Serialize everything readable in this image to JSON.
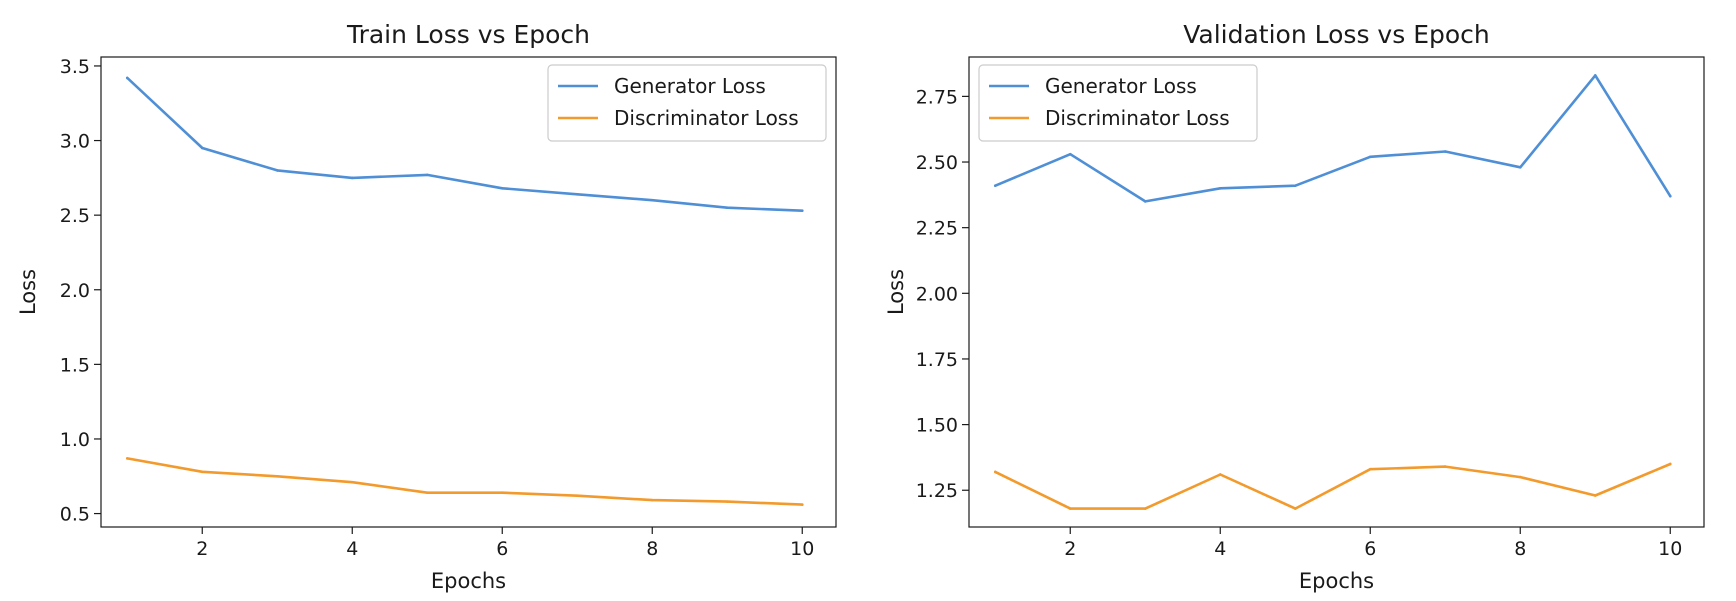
{
  "chart_data": [
    {
      "type": "line",
      "title": "Train Loss vs Epoch",
      "xlabel": "Epochs",
      "ylabel": "Loss",
      "x": [
        1,
        2,
        3,
        4,
        5,
        6,
        7,
        8,
        9,
        10
      ],
      "xlim": [
        0.65,
        10.45
      ],
      "ylim": [
        0.41,
        3.56
      ],
      "xticks": [
        2,
        4,
        6,
        8,
        10
      ],
      "xtick_labels": [
        "2",
        "4",
        "6",
        "8",
        "10"
      ],
      "yticks": [
        0.5,
        1.0,
        1.5,
        2.0,
        2.5,
        3.0,
        3.5
      ],
      "ytick_labels": [
        "0.5",
        "1.0",
        "1.5",
        "2.0",
        "2.5",
        "3.0",
        "3.5"
      ],
      "grid": false,
      "legend_position": "top-right",
      "series": [
        {
          "name": "Generator Loss",
          "color": "#4f8fd6",
          "values": [
            3.42,
            2.95,
            2.8,
            2.75,
            2.77,
            2.68,
            2.64,
            2.6,
            2.55,
            2.53
          ]
        },
        {
          "name": "Discriminator Loss",
          "color": "#f39a2c",
          "values": [
            0.87,
            0.78,
            0.75,
            0.71,
            0.64,
            0.64,
            0.62,
            0.59,
            0.58,
            0.56
          ]
        }
      ]
    },
    {
      "type": "line",
      "title": "Validation Loss vs Epoch",
      "xlabel": "Epochs",
      "ylabel": "Loss",
      "x": [
        1,
        2,
        3,
        4,
        5,
        6,
        7,
        8,
        9,
        10
      ],
      "xlim": [
        0.65,
        10.45
      ],
      "ylim": [
        1.11,
        2.9
      ],
      "xticks": [
        2,
        4,
        6,
        8,
        10
      ],
      "xtick_labels": [
        "2",
        "4",
        "6",
        "8",
        "10"
      ],
      "yticks": [
        1.25,
        1.5,
        1.75,
        2.0,
        2.25,
        2.5,
        2.75
      ],
      "ytick_labels": [
        "1.25",
        "1.50",
        "1.75",
        "2.00",
        "2.25",
        "2.50",
        "2.75"
      ],
      "grid": false,
      "legend_position": "top-left",
      "series": [
        {
          "name": "Generator Loss",
          "color": "#4f8fd6",
          "values": [
            2.41,
            2.53,
            2.35,
            2.4,
            2.41,
            2.52,
            2.54,
            2.48,
            2.83,
            2.37
          ]
        },
        {
          "name": "Discriminator Loss",
          "color": "#f39a2c",
          "values": [
            1.32,
            1.18,
            1.18,
            1.31,
            1.18,
            1.33,
            1.34,
            1.3,
            1.23,
            1.35
          ]
        }
      ]
    }
  ]
}
